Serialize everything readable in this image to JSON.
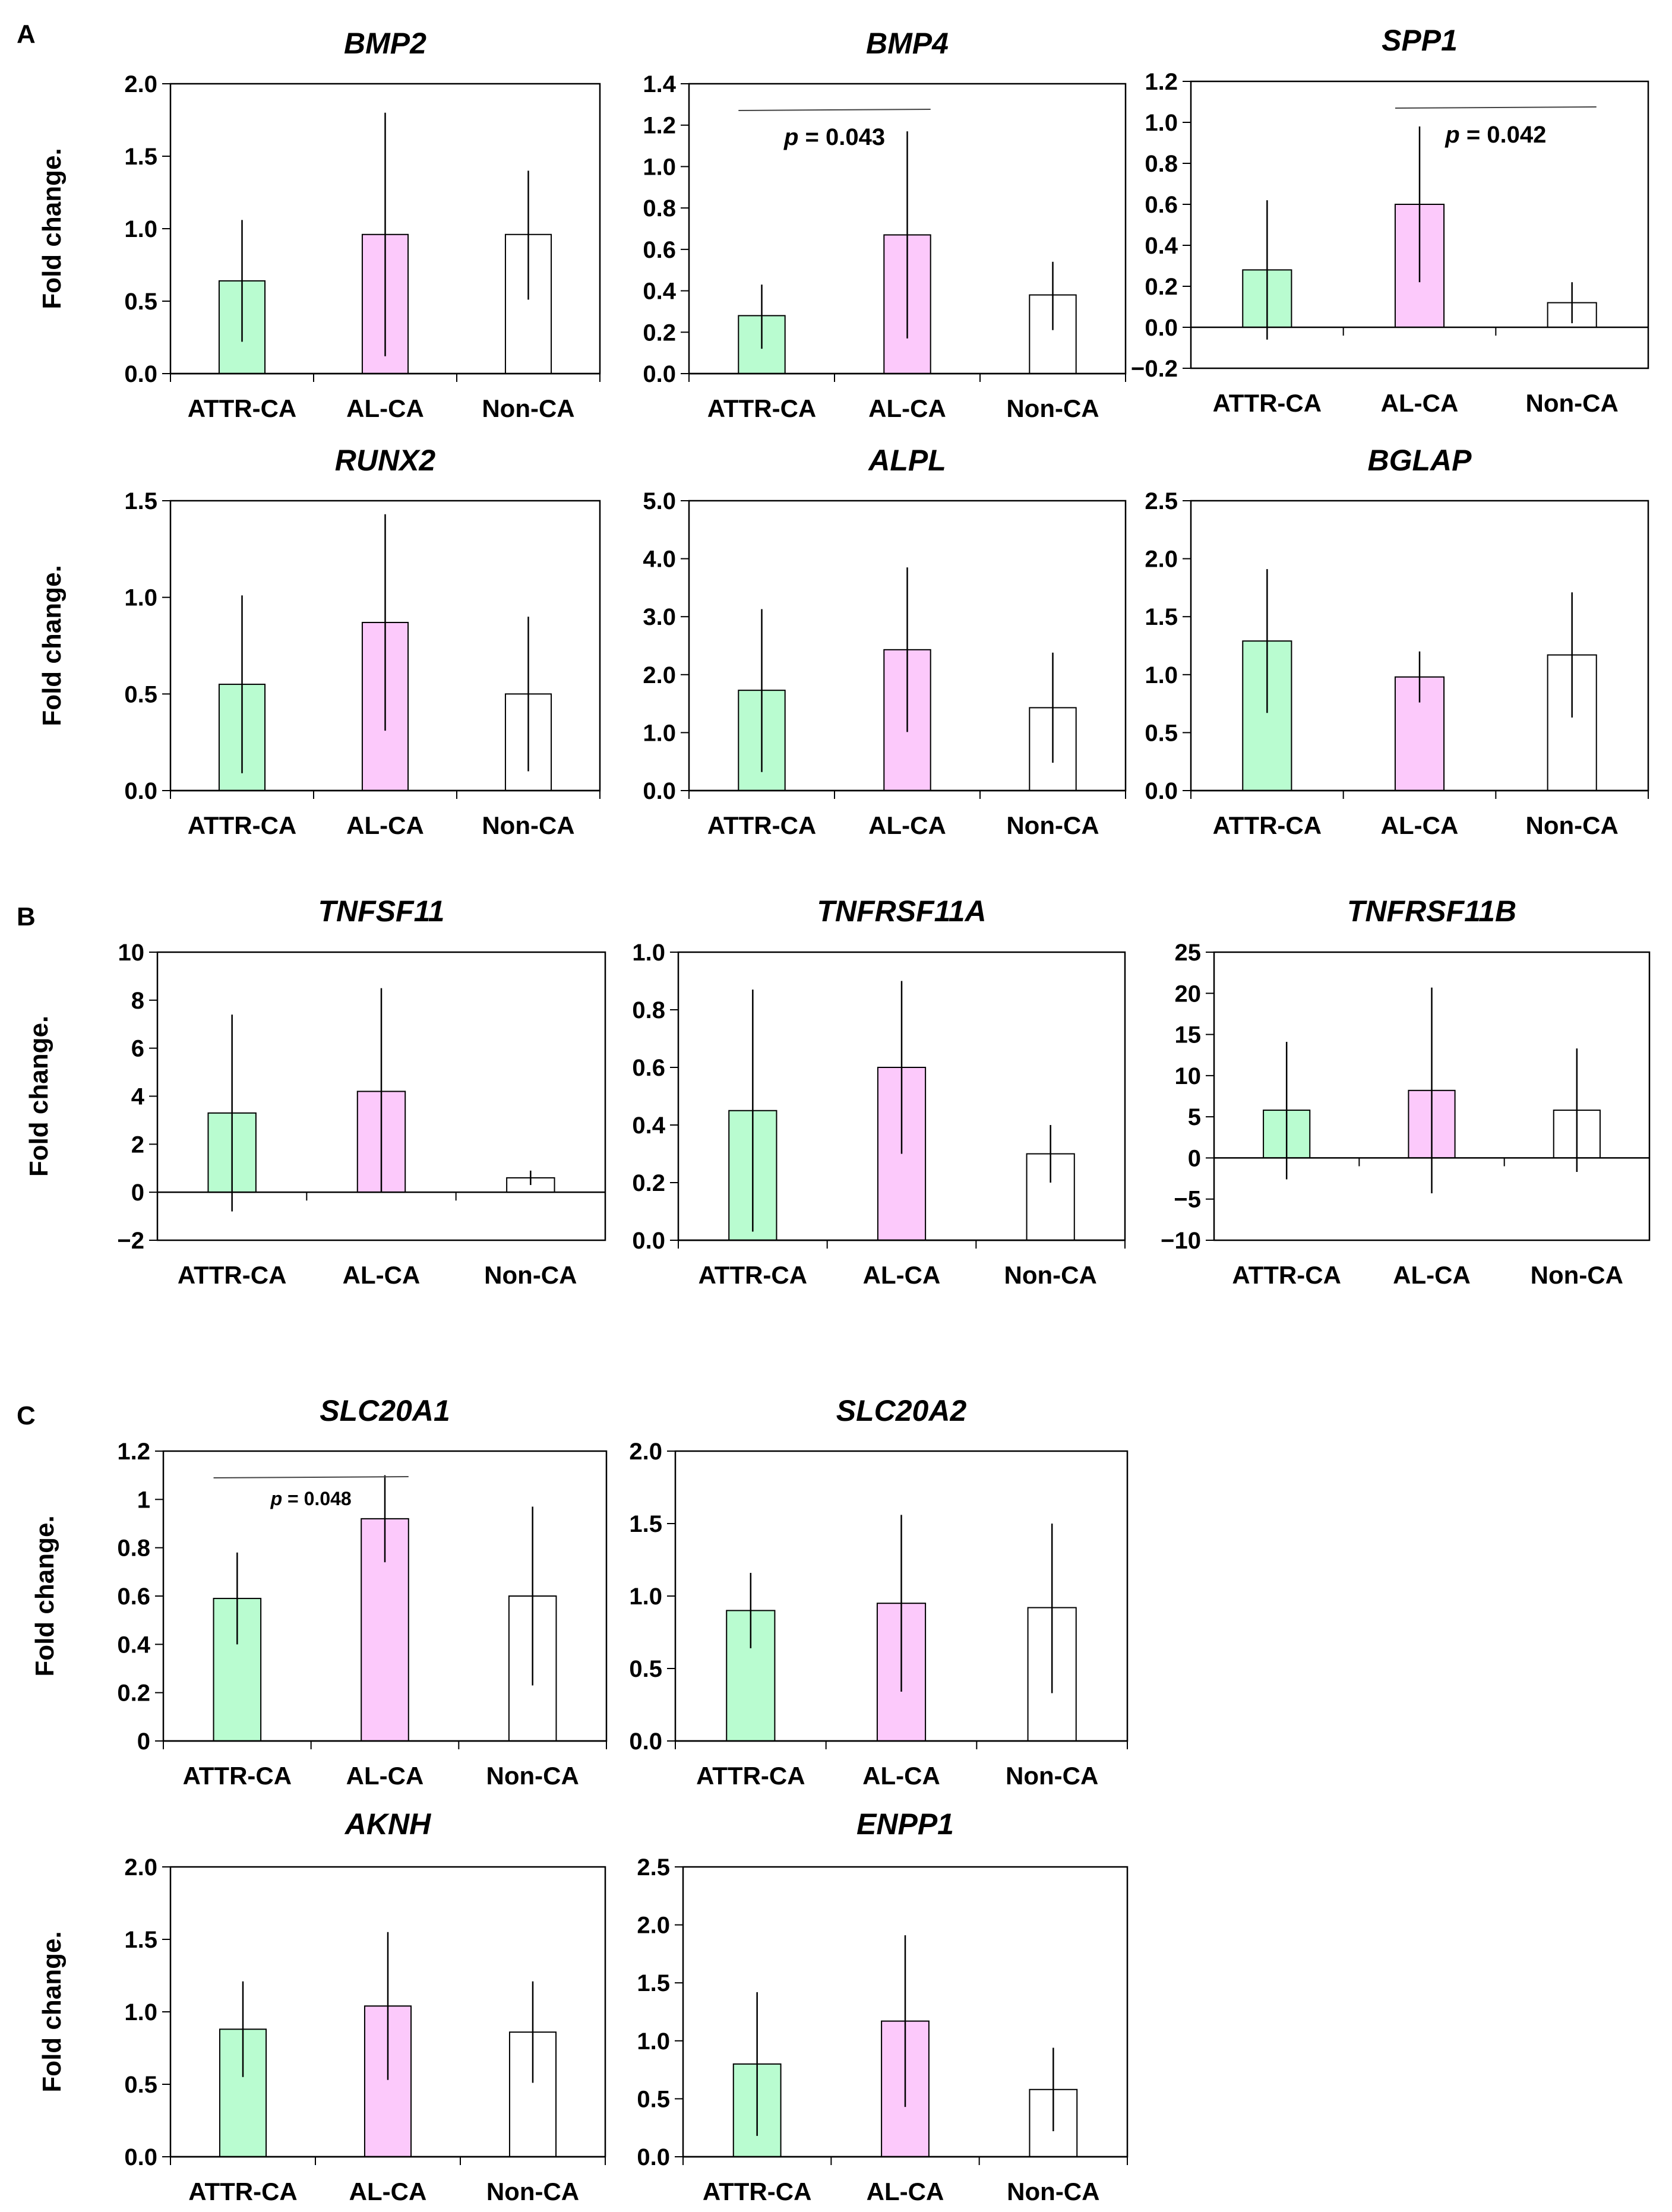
{
  "panels": [
    {
      "label": "A"
    },
    {
      "label": "B"
    },
    {
      "label": "C"
    }
  ],
  "colors": {
    "ATTR-CA": "#b9fcd0",
    "AL-CA": "#fcc9fb",
    "Non-CA": "#ffffff",
    "stroke": "#000000"
  },
  "chart_data": [
    {
      "type": "bar",
      "title": "BMP2",
      "ylabel": "Fold change.",
      "categories": [
        "ATTR-CA",
        "AL-CA",
        "Non-CA"
      ],
      "values": [
        0.64,
        0.96,
        0.96
      ],
      "errors_low": [
        0.22,
        0.12,
        0.51
      ],
      "errors_high": [
        1.06,
        1.8,
        1.4
      ],
      "ylim": [
        0,
        2.0
      ],
      "yticks": [
        "0.0",
        "0.5",
        "1.0",
        "1.5",
        "2.0"
      ]
    },
    {
      "type": "bar",
      "title": "BMP4",
      "ylabel": "",
      "categories": [
        "ATTR-CA",
        "AL-CA",
        "Non-CA"
      ],
      "values": [
        0.28,
        0.67,
        0.38
      ],
      "errors_low": [
        0.12,
        0.17,
        0.21
      ],
      "errors_high": [
        0.43,
        1.17,
        0.54
      ],
      "ylim": [
        0,
        1.4
      ],
      "yticks": [
        "0.0",
        "0.2",
        "0.4",
        "0.6",
        "0.8",
        "1.0",
        "1.2",
        "1.4"
      ],
      "annotation": {
        "text": "p = 0.043",
        "between": [
          "ATTR-CA",
          "AL-CA"
        ]
      }
    },
    {
      "type": "bar",
      "title": "SPP1",
      "ylabel": "",
      "categories": [
        "ATTR-CA",
        "AL-CA",
        "Non-CA"
      ],
      "values": [
        0.28,
        0.6,
        0.12
      ],
      "errors_low": [
        -0.06,
        0.22,
        0.02
      ],
      "errors_high": [
        0.62,
        0.98,
        0.22
      ],
      "ylim": [
        -0.2,
        1.2
      ],
      "yticks": [
        "-0.2",
        "0.0",
        "0.2",
        "0.4",
        "0.6",
        "0.8",
        "1.0",
        "1.2"
      ],
      "annotation": {
        "text": "p = 0.042",
        "between": [
          "AL-CA",
          "Non-CA"
        ]
      }
    },
    {
      "type": "bar",
      "title": "RUNX2",
      "ylabel": "Fold change.",
      "categories": [
        "ATTR-CA",
        "AL-CA",
        "Non-CA"
      ],
      "values": [
        0.55,
        0.87,
        0.5
      ],
      "errors_low": [
        0.09,
        0.31,
        0.1
      ],
      "errors_high": [
        1.01,
        1.43,
        0.9
      ],
      "ylim": [
        0,
        1.5
      ],
      "yticks": [
        "0.0",
        "0.5",
        "1.0",
        "1.5"
      ]
    },
    {
      "type": "bar",
      "title": "ALPL",
      "ylabel": "",
      "categories": [
        "ATTR-CA",
        "AL-CA",
        "Non-CA"
      ],
      "values": [
        1.73,
        2.43,
        1.43
      ],
      "errors_low": [
        0.32,
        1.01,
        0.48
      ],
      "errors_high": [
        3.13,
        3.85,
        2.38
      ],
      "ylim": [
        0,
        5.0
      ],
      "yticks": [
        "0.0",
        "1.0",
        "2.0",
        "3.0",
        "4.0",
        "5.0"
      ]
    },
    {
      "type": "bar",
      "title": "BGLAP",
      "ylabel": "",
      "categories": [
        "ATTR-CA",
        "AL-CA",
        "Non-CA"
      ],
      "values": [
        1.29,
        0.98,
        1.17
      ],
      "errors_low": [
        0.67,
        0.76,
        0.63
      ],
      "errors_high": [
        1.91,
        1.2,
        1.71
      ],
      "ylim": [
        0,
        2.5
      ],
      "yticks": [
        "0.0",
        "0.5",
        "1.0",
        "1.5",
        "2.0",
        "2.5"
      ]
    },
    {
      "type": "bar",
      "title": "TNFSF11",
      "ylabel": "Fold change.",
      "categories": [
        "ATTR-CA",
        "AL-CA",
        "Non-CA"
      ],
      "values": [
        3.3,
        4.2,
        0.6
      ],
      "errors_low": [
        -0.8,
        0.0,
        0.3
      ],
      "errors_high": [
        7.4,
        8.5,
        0.9
      ],
      "ylim": [
        -2,
        10
      ],
      "yticks": [
        "-2",
        "0",
        "2",
        "4",
        "6",
        "8",
        "10"
      ]
    },
    {
      "type": "bar",
      "title": "TNFRSF11A",
      "ylabel": "",
      "categories": [
        "ATTR-CA",
        "AL-CA",
        "Non-CA"
      ],
      "values": [
        0.45,
        0.6,
        0.3
      ],
      "errors_low": [
        0.03,
        0.3,
        0.2
      ],
      "errors_high": [
        0.87,
        0.9,
        0.4
      ],
      "ylim": [
        0,
        1.0
      ],
      "yticks": [
        "0.0",
        "0.2",
        "0.4",
        "0.6",
        "0.8",
        "1.0"
      ]
    },
    {
      "type": "bar",
      "title": "TNFRSF11B",
      "ylabel": "",
      "categories": [
        "ATTR-CA",
        "AL-CA",
        "Non-CA"
      ],
      "values": [
        5.8,
        8.2,
        5.8
      ],
      "errors_low": [
        -2.6,
        -4.3,
        -1.7
      ],
      "errors_high": [
        14.1,
        20.7,
        13.3
      ],
      "ylim": [
        -10,
        25
      ],
      "yticks": [
        "-10",
        "-5",
        "0",
        "5",
        "10",
        "15",
        "20",
        "25"
      ]
    },
    {
      "type": "bar",
      "title": "SLC20A1",
      "ylabel": "Fold change.",
      "categories": [
        "ATTR-CA",
        "AL-CA",
        "Non-CA"
      ],
      "values": [
        0.59,
        0.92,
        0.6
      ],
      "errors_low": [
        0.4,
        0.74,
        0.23
      ],
      "errors_high": [
        0.78,
        1.1,
        0.97
      ],
      "ylim": [
        0,
        1.2
      ],
      "yticks": [
        "0",
        "0.2",
        "0.4",
        "0.6",
        "0.8",
        "1",
        "1.2"
      ],
      "annotation": {
        "text": "p = 0.048",
        "between": [
          "ATTR-CA",
          "AL-CA"
        ],
        "small": true
      }
    },
    {
      "type": "bar",
      "title": "SLC20A2",
      "ylabel": "",
      "categories": [
        "ATTR-CA",
        "AL-CA",
        "Non-CA"
      ],
      "values": [
        0.9,
        0.95,
        0.92
      ],
      "errors_low": [
        0.64,
        0.34,
        0.33
      ],
      "errors_high": [
        1.16,
        1.56,
        1.5
      ],
      "ylim": [
        0,
        2.0
      ],
      "yticks": [
        "0.0",
        "0.5",
        "1.0",
        "1.5",
        "2.0"
      ]
    },
    {
      "type": "bar",
      "title": "AKNH",
      "ylabel": "Fold change.",
      "categories": [
        "ATTR-CA",
        "AL-CA",
        "Non-CA"
      ],
      "values": [
        0.88,
        1.04,
        0.86
      ],
      "errors_low": [
        0.55,
        0.53,
        0.51
      ],
      "errors_high": [
        1.21,
        1.55,
        1.21
      ],
      "ylim": [
        0,
        2.0
      ],
      "yticks": [
        "0.0",
        "0.5",
        "1.0",
        "1.5",
        "2.0"
      ]
    },
    {
      "type": "bar",
      "title": "ENPP1",
      "ylabel": "",
      "categories": [
        "ATTR-CA",
        "AL-CA",
        "Non-CA"
      ],
      "values": [
        0.8,
        1.17,
        0.58
      ],
      "errors_low": [
        0.18,
        0.43,
        0.22
      ],
      "errors_high": [
        1.42,
        1.91,
        0.94
      ],
      "ylim": [
        0,
        2.5
      ],
      "yticks": [
        "0.0",
        "0.5",
        "1.0",
        "1.5",
        "2.0",
        "2.5"
      ]
    }
  ]
}
